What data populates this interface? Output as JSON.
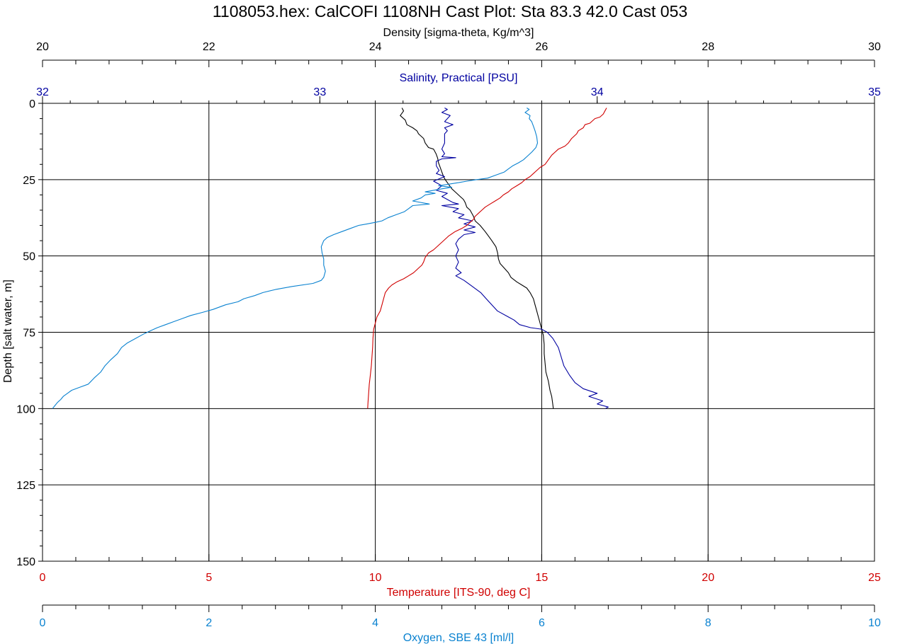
{
  "chart_data": {
    "type": "line",
    "title": "1108053.hex:  CalCOFI 1108NH Cast Plot:   Sta 83.3   42.0   Cast 053",
    "y_axis": {
      "label": "Depth [salt water, m]",
      "range": [
        0,
        150
      ],
      "ticks": [
        "0",
        "25",
        "50",
        "75",
        "100",
        "125",
        "150"
      ],
      "inverted": true
    },
    "x_axes": [
      {
        "id": "density",
        "label": "Density [sigma-theta, Kg/m^3]",
        "range": [
          20,
          30
        ],
        "ticks": [
          "20",
          "22",
          "24",
          "26",
          "28",
          "30"
        ],
        "color": "#000000"
      },
      {
        "id": "salinity",
        "label": "Salinity, Practical [PSU]",
        "range": [
          32,
          35
        ],
        "ticks": [
          "32",
          "33",
          "34",
          "35"
        ],
        "color": "#0000a0"
      },
      {
        "id": "temperature",
        "label": "Temperature [ITS-90, deg C]",
        "range": [
          0,
          25
        ],
        "ticks": [
          "0",
          "5",
          "10",
          "15",
          "20",
          "25"
        ],
        "color": "#d00000"
      },
      {
        "id": "oxygen",
        "label": "Oxygen, SBE 43 [ml/l]",
        "range": [
          0,
          10
        ],
        "ticks": [
          "0",
          "2",
          "4",
          "6",
          "8",
          "10"
        ],
        "color": "#0a82d0"
      }
    ],
    "grid": true,
    "series": [
      {
        "axis": "density",
        "color": "#000000",
        "points": [
          [
            24.32,
            1.5
          ],
          [
            24.34,
            2.5
          ],
          [
            24.3,
            4
          ],
          [
            24.36,
            5.5
          ],
          [
            24.38,
            7
          ],
          [
            24.45,
            8
          ],
          [
            24.5,
            9
          ],
          [
            24.52,
            10
          ],
          [
            24.58,
            11.5
          ],
          [
            24.6,
            13
          ],
          [
            24.64,
            14.5
          ],
          [
            24.7,
            15
          ],
          [
            24.73,
            16.5
          ],
          [
            24.75,
            18
          ],
          [
            24.76,
            19.5
          ],
          [
            24.78,
            21
          ],
          [
            24.8,
            22.5
          ],
          [
            24.82,
            24
          ],
          [
            24.84,
            25
          ],
          [
            24.88,
            26.5
          ],
          [
            24.92,
            28
          ],
          [
            24.96,
            29
          ],
          [
            25.02,
            30.5
          ],
          [
            25.06,
            31.5
          ],
          [
            25.08,
            32.5
          ],
          [
            25.1,
            34
          ],
          [
            25.14,
            35
          ],
          [
            25.18,
            37
          ],
          [
            25.2,
            38.5
          ],
          [
            25.26,
            40
          ],
          [
            25.32,
            42
          ],
          [
            25.36,
            43.5
          ],
          [
            25.4,
            45
          ],
          [
            25.45,
            47
          ],
          [
            25.47,
            49
          ],
          [
            25.48,
            51
          ],
          [
            25.5,
            52.5
          ],
          [
            25.55,
            54
          ],
          [
            25.6,
            55.5
          ],
          [
            25.63,
            57
          ],
          [
            25.7,
            58.5
          ],
          [
            25.76,
            59.5
          ],
          [
            25.82,
            60.5
          ],
          [
            25.86,
            62
          ],
          [
            25.9,
            64
          ],
          [
            25.92,
            66
          ],
          [
            25.94,
            68
          ],
          [
            25.96,
            70
          ],
          [
            25.98,
            72
          ],
          [
            26.0,
            74
          ],
          [
            26.02,
            76
          ],
          [
            26.03,
            79
          ],
          [
            26.03,
            82
          ],
          [
            26.04,
            85
          ],
          [
            26.05,
            88
          ],
          [
            26.08,
            91
          ],
          [
            26.1,
            94
          ],
          [
            26.12,
            96
          ],
          [
            26.13,
            98
          ],
          [
            26.14,
            100
          ]
        ]
      },
      {
        "axis": "salinity",
        "color": "#0000a0",
        "points": [
          [
            33.45,
            1.5
          ],
          [
            33.46,
            2
          ],
          [
            33.44,
            3
          ],
          [
            33.47,
            4
          ],
          [
            33.46,
            5
          ],
          [
            33.45,
            6
          ],
          [
            33.48,
            7
          ],
          [
            33.45,
            8
          ],
          [
            33.46,
            9
          ],
          [
            33.45,
            10
          ],
          [
            33.45,
            11.5
          ],
          [
            33.45,
            13
          ],
          [
            33.44,
            15
          ],
          [
            33.45,
            16.5
          ],
          [
            33.44,
            17.5
          ],
          [
            33.49,
            17.8
          ],
          [
            33.44,
            18.2
          ],
          [
            33.42,
            19
          ],
          [
            33.42,
            20.5
          ],
          [
            33.43,
            22
          ],
          [
            33.42,
            23
          ],
          [
            33.45,
            24
          ],
          [
            33.41,
            25.5
          ],
          [
            33.44,
            27
          ],
          [
            33.42,
            28.5
          ],
          [
            33.46,
            29.5
          ],
          [
            33.44,
            30.5
          ],
          [
            33.46,
            31.5
          ],
          [
            33.48,
            32.5
          ],
          [
            33.5,
            33
          ],
          [
            33.44,
            33.5
          ],
          [
            33.5,
            34.5
          ],
          [
            33.48,
            35.5
          ],
          [
            33.52,
            36.5
          ],
          [
            33.5,
            37.5
          ],
          [
            33.55,
            38.5
          ],
          [
            33.52,
            39.5
          ],
          [
            33.56,
            40.5
          ],
          [
            33.52,
            41.5
          ],
          [
            33.56,
            42.3
          ],
          [
            33.52,
            43
          ],
          [
            33.5,
            44.5
          ],
          [
            33.49,
            46
          ],
          [
            33.5,
            48
          ],
          [
            33.49,
            50
          ],
          [
            33.5,
            52
          ],
          [
            33.49,
            54
          ],
          [
            33.51,
            55.5
          ],
          [
            33.49,
            56.5
          ],
          [
            33.52,
            58
          ],
          [
            33.55,
            60
          ],
          [
            33.58,
            62
          ],
          [
            33.6,
            64
          ],
          [
            33.62,
            66
          ],
          [
            33.64,
            68
          ],
          [
            33.68,
            70
          ],
          [
            33.7,
            71
          ],
          [
            33.72,
            72.5
          ],
          [
            33.76,
            73.5
          ],
          [
            33.8,
            74
          ],
          [
            33.82,
            75
          ],
          [
            33.84,
            77
          ],
          [
            33.86,
            80
          ],
          [
            33.87,
            83
          ],
          [
            33.88,
            86
          ],
          [
            33.9,
            89
          ],
          [
            33.92,
            91.5
          ],
          [
            33.95,
            93.5
          ],
          [
            34.0,
            95
          ],
          [
            33.97,
            96
          ],
          [
            34.02,
            97.5
          ],
          [
            34.0,
            98.5
          ],
          [
            34.04,
            99.5
          ],
          [
            34.03,
            100
          ]
        ]
      },
      {
        "axis": "temperature",
        "color": "#d00000",
        "points": [
          [
            16.95,
            1.5
          ],
          [
            16.9,
            2.5
          ],
          [
            16.85,
            3.5
          ],
          [
            16.75,
            4.5
          ],
          [
            16.6,
            5
          ],
          [
            16.5,
            6
          ],
          [
            16.45,
            6.5
          ],
          [
            16.3,
            7
          ],
          [
            16.25,
            8
          ],
          [
            16.1,
            9
          ],
          [
            16.05,
            10
          ],
          [
            15.9,
            11.5
          ],
          [
            15.8,
            13
          ],
          [
            15.7,
            14
          ],
          [
            15.5,
            15
          ],
          [
            15.4,
            16
          ],
          [
            15.3,
            17
          ],
          [
            15.2,
            18.5
          ],
          [
            15.1,
            20
          ],
          [
            14.95,
            21
          ],
          [
            14.85,
            22
          ],
          [
            14.75,
            23
          ],
          [
            14.65,
            24
          ],
          [
            14.5,
            25
          ],
          [
            14.4,
            26
          ],
          [
            14.25,
            27
          ],
          [
            14.1,
            28
          ],
          [
            14.0,
            29
          ],
          [
            13.85,
            30
          ],
          [
            13.75,
            31
          ],
          [
            13.6,
            32
          ],
          [
            13.45,
            33
          ],
          [
            13.3,
            34
          ],
          [
            13.2,
            35
          ],
          [
            13.1,
            36
          ],
          [
            13.0,
            37
          ],
          [
            12.95,
            38
          ],
          [
            12.85,
            39
          ],
          [
            12.75,
            40
          ],
          [
            12.6,
            41
          ],
          [
            12.4,
            42
          ],
          [
            12.2,
            43.5
          ],
          [
            12.05,
            45
          ],
          [
            11.9,
            46.5
          ],
          [
            11.75,
            48
          ],
          [
            11.6,
            49
          ],
          [
            11.5,
            50.5
          ],
          [
            11.45,
            52
          ],
          [
            11.4,
            53
          ],
          [
            11.3,
            54
          ],
          [
            11.15,
            55.5
          ],
          [
            11.0,
            56.5
          ],
          [
            10.85,
            57.5
          ],
          [
            10.65,
            58.5
          ],
          [
            10.5,
            59.5
          ],
          [
            10.4,
            60.5
          ],
          [
            10.3,
            62
          ],
          [
            10.25,
            64
          ],
          [
            10.2,
            66
          ],
          [
            10.15,
            68
          ],
          [
            10.05,
            70
          ],
          [
            10.0,
            72
          ],
          [
            9.95,
            74
          ],
          [
            9.93,
            77
          ],
          [
            9.92,
            80
          ],
          [
            9.9,
            83
          ],
          [
            9.88,
            86
          ],
          [
            9.85,
            89
          ],
          [
            9.82,
            92
          ],
          [
            9.8,
            95
          ],
          [
            9.78,
            98
          ],
          [
            9.77,
            100
          ]
        ]
      },
      {
        "axis": "oxygen",
        "color": "#0a82d0",
        "points": [
          [
            5.82,
            1.5
          ],
          [
            5.85,
            2
          ],
          [
            5.8,
            3
          ],
          [
            5.86,
            4
          ],
          [
            5.85,
            5
          ],
          [
            5.88,
            6
          ],
          [
            5.9,
            7.5
          ],
          [
            5.92,
            9
          ],
          [
            5.94,
            11
          ],
          [
            5.95,
            13
          ],
          [
            5.93,
            14.5
          ],
          [
            5.88,
            16
          ],
          [
            5.82,
            17.5
          ],
          [
            5.78,
            18.5
          ],
          [
            5.72,
            19.5
          ],
          [
            5.65,
            20.5
          ],
          [
            5.6,
            21.5
          ],
          [
            5.55,
            22.5
          ],
          [
            5.45,
            23.5
          ],
          [
            5.35,
            24.5
          ],
          [
            5.22,
            25
          ],
          [
            5.1,
            25.5
          ],
          [
            5.0,
            26
          ],
          [
            4.88,
            26.5
          ],
          [
            4.76,
            27
          ],
          [
            4.92,
            27.5
          ],
          [
            4.8,
            28
          ],
          [
            4.7,
            28.5
          ],
          [
            4.6,
            29
          ],
          [
            4.72,
            29.5
          ],
          [
            4.6,
            30
          ],
          [
            4.55,
            31
          ],
          [
            4.45,
            32
          ],
          [
            4.65,
            33
          ],
          [
            4.45,
            33.5
          ],
          [
            4.4,
            34.5
          ],
          [
            4.35,
            35.5
          ],
          [
            4.25,
            36.5
          ],
          [
            4.15,
            37.5
          ],
          [
            4.08,
            38.5
          ],
          [
            4.0,
            39
          ],
          [
            3.9,
            39.5
          ],
          [
            3.8,
            40
          ],
          [
            3.7,
            41
          ],
          [
            3.6,
            42
          ],
          [
            3.5,
            43
          ],
          [
            3.42,
            44
          ],
          [
            3.38,
            45
          ],
          [
            3.35,
            47
          ],
          [
            3.36,
            49
          ],
          [
            3.38,
            51
          ],
          [
            3.38,
            53
          ],
          [
            3.4,
            55
          ],
          [
            3.38,
            57
          ],
          [
            3.35,
            58
          ],
          [
            3.25,
            59
          ],
          [
            3.0,
            60
          ],
          [
            2.8,
            61
          ],
          [
            2.65,
            62
          ],
          [
            2.55,
            63
          ],
          [
            2.42,
            64
          ],
          [
            2.35,
            65
          ],
          [
            2.2,
            66
          ],
          [
            2.05,
            67.5
          ],
          [
            1.92,
            68.5
          ],
          [
            1.78,
            69.5
          ],
          [
            1.68,
            70.5
          ],
          [
            1.58,
            71.5
          ],
          [
            1.48,
            72.5
          ],
          [
            1.38,
            73.5
          ],
          [
            1.3,
            74.5
          ],
          [
            1.22,
            75.5
          ],
          [
            1.12,
            77
          ],
          [
            1.02,
            78.5
          ],
          [
            0.95,
            80
          ],
          [
            0.9,
            82
          ],
          [
            0.82,
            84
          ],
          [
            0.75,
            86
          ],
          [
            0.7,
            88
          ],
          [
            0.62,
            90
          ],
          [
            0.55,
            92
          ],
          [
            0.45,
            93
          ],
          [
            0.35,
            94
          ],
          [
            0.3,
            95
          ],
          [
            0.25,
            96
          ],
          [
            0.22,
            97
          ],
          [
            0.18,
            98
          ],
          [
            0.15,
            99
          ],
          [
            0.12,
            100
          ]
        ]
      }
    ]
  }
}
